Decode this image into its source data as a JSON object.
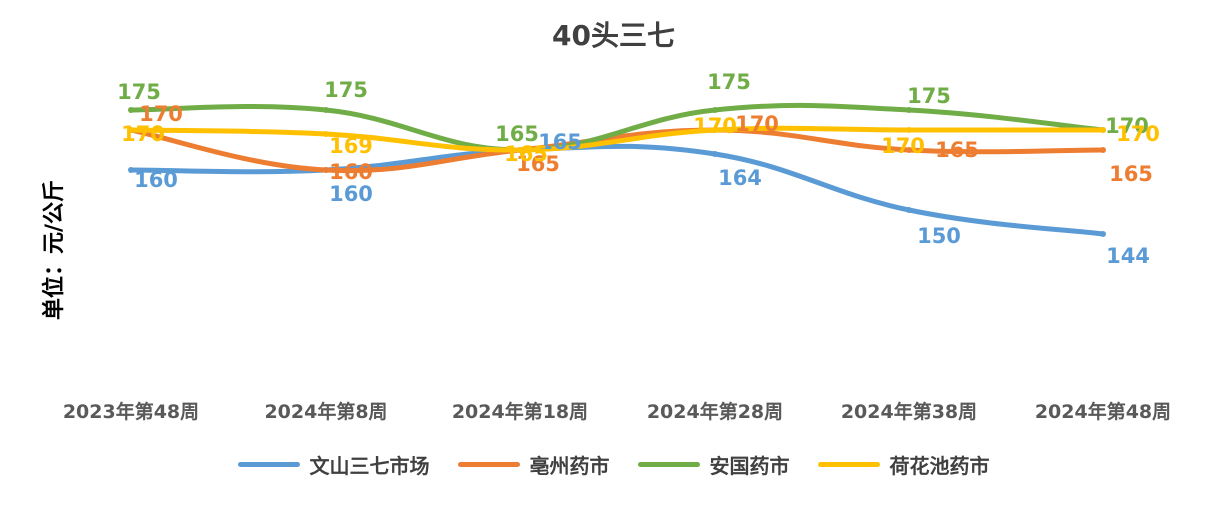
{
  "chart_data": {
    "type": "line",
    "title": "40头三七",
    "ylabel": "单位：元/公斤",
    "xlabel": "",
    "categories": [
      "2023年第48周",
      "2024年第8周",
      "2024年第18周",
      "2024年第28周",
      "2024年第38周",
      "2024年第48周"
    ],
    "ylim": [
      110,
      190
    ],
    "grid": false,
    "legend_position": "bottom",
    "series": [
      {
        "name": "文山三七市场",
        "color": "#5B9BD5",
        "values": [
          160,
          160,
          165,
          164,
          150,
          144
        ]
      },
      {
        "name": "亳州药市",
        "color": "#ED7D31",
        "values": [
          170,
          160,
          165,
          170,
          165,
          165
        ]
      },
      {
        "name": "安国药市",
        "color": "#70AD47",
        "values": [
          175,
          175,
          165,
          175,
          175,
          170
        ]
      },
      {
        "name": "荷花池药市",
        "color": "#FFC000",
        "values": [
          170,
          169,
          165,
          170,
          170,
          170
        ]
      }
    ]
  }
}
